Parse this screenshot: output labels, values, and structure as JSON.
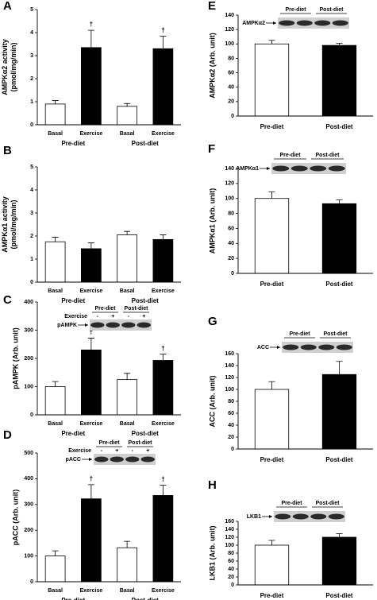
{
  "chart_data": [
    {
      "type": "bar",
      "panel": "A",
      "ylabel": [
        "AMPKα2 activity",
        "(pmol/mg/min)"
      ],
      "categories": [
        "Basal",
        "Exercise",
        "Basal",
        "Exercise"
      ],
      "groups": [
        "Pre-diet",
        "Post-diet"
      ],
      "values": [
        0.9,
        3.35,
        0.8,
        3.3
      ],
      "errors": [
        0.15,
        0.75,
        0.12,
        0.55
      ],
      "colors": [
        "#ffffff",
        "#000000",
        "#ffffff",
        "#000000"
      ],
      "daggers": [
        null,
        "†",
        null,
        "†"
      ],
      "ylim": [
        0,
        5
      ],
      "yticks": [
        0,
        1,
        2,
        3,
        4,
        5
      ]
    },
    {
      "type": "bar",
      "panel": "B",
      "ylabel": [
        "AMPKα1 activity",
        "(pmol/mg/min)"
      ],
      "categories": [
        "Basal",
        "Exercise",
        "Basal",
        "Exercise"
      ],
      "groups": [
        "Pre-diet",
        "Post-diet"
      ],
      "values": [
        1.75,
        1.45,
        2.05,
        1.85
      ],
      "errors": [
        0.2,
        0.25,
        0.15,
        0.2
      ],
      "colors": [
        "#ffffff",
        "#000000",
        "#ffffff",
        "#000000"
      ],
      "ylim": [
        0,
        5
      ],
      "yticks": [
        0,
        1,
        2,
        3,
        4,
        5
      ]
    },
    {
      "type": "bar",
      "panel": "C",
      "ylabel": [
        "pAMPK (Arb. unit)"
      ],
      "categories": [
        "Basal",
        "Exercise",
        "Basal",
        "Exercise"
      ],
      "groups": [
        "Pre-diet",
        "Post-diet"
      ],
      "values": [
        100,
        230,
        125,
        193
      ],
      "errors": [
        18,
        42,
        22,
        22
      ],
      "colors": [
        "#ffffff",
        "#000000",
        "#ffffff",
        "#000000"
      ],
      "daggers": [
        null,
        "†",
        null,
        "†"
      ],
      "ylim": [
        0,
        400
      ],
      "yticks": [
        0,
        100,
        200,
        300,
        400
      ],
      "blot": {
        "label": "pAMPK",
        "groups": [
          "Pre-diet",
          "Post-diet"
        ],
        "row_label": "Exercise",
        "lanes": [
          "-",
          "+",
          "-",
          "+"
        ]
      }
    },
    {
      "type": "bar",
      "panel": "D",
      "ylabel": [
        "pACC (Arb. unit)"
      ],
      "categories": [
        "Basal",
        "Exercise",
        "Basal",
        "Exercise"
      ],
      "groups": [
        "Pre-diet",
        "Post-diet"
      ],
      "values": [
        100,
        322,
        132,
        335
      ],
      "errors": [
        20,
        55,
        25,
        40
      ],
      "colors": [
        "#ffffff",
        "#000000",
        "#ffffff",
        "#000000"
      ],
      "daggers": [
        null,
        "†",
        null,
        "†"
      ],
      "ylim": [
        0,
        500
      ],
      "yticks": [
        0,
        100,
        200,
        300,
        400,
        500
      ],
      "blot": {
        "label": "pACC",
        "groups": [
          "Pre-diet",
          "Post-diet"
        ],
        "row_label": "Exercise",
        "lanes": [
          "-",
          "+",
          "-",
          "+"
        ]
      }
    },
    {
      "type": "bar",
      "panel": "E",
      "ylabel": [
        "AMPKα2 (Arb. unit)"
      ],
      "categories": [
        "Pre-diet",
        "Post-diet"
      ],
      "values": [
        100,
        98
      ],
      "errors": [
        5,
        3
      ],
      "colors": [
        "#ffffff",
        "#000000"
      ],
      "ylim": [
        0,
        140
      ],
      "yticks": [
        0,
        20,
        40,
        60,
        80,
        100,
        120,
        140
      ],
      "blot": {
        "label": "AMPKα2",
        "groups": [
          "Pre-diet",
          "Post-diet"
        ]
      }
    },
    {
      "type": "bar",
      "panel": "F",
      "ylabel": [
        "AMPKα1 (Arb. unit)"
      ],
      "categories": [
        "Pre-diet",
        "Post-diet"
      ],
      "values": [
        100,
        93
      ],
      "errors": [
        9,
        5
      ],
      "colors": [
        "#ffffff",
        "#000000"
      ],
      "ylim": [
        0,
        140
      ],
      "yticks": [
        0,
        20,
        40,
        60,
        80,
        100,
        120,
        140
      ],
      "blot": {
        "label": "AMPKα1",
        "groups": [
          "Pre-diet",
          "Post-diet"
        ]
      }
    },
    {
      "type": "bar",
      "panel": "G",
      "ylabel": [
        "ACC (Arb. unit)"
      ],
      "categories": [
        "Pre-diet",
        "Post-diet"
      ],
      "values": [
        100,
        125
      ],
      "errors": [
        13,
        22
      ],
      "colors": [
        "#ffffff",
        "#000000"
      ],
      "ylim": [
        0,
        160
      ],
      "yticks": [
        0,
        20,
        40,
        60,
        80,
        100,
        120,
        140,
        160
      ],
      "blot": {
        "label": "ACC",
        "groups": [
          "Pre-diet",
          "Post-diet"
        ]
      }
    },
    {
      "type": "bar",
      "panel": "H",
      "ylabel": [
        "LKB1 (Arb. unit)"
      ],
      "categories": [
        "Pre-diet",
        "Post-diet"
      ],
      "values": [
        100,
        120
      ],
      "errors": [
        12,
        9
      ],
      "colors": [
        "#ffffff",
        "#000000"
      ],
      "ylim": [
        0,
        160
      ],
      "yticks": [
        0,
        20,
        40,
        60,
        80,
        100,
        120,
        140,
        160
      ],
      "blot": {
        "label": "LKB1",
        "groups": [
          "Pre-diet",
          "Post-diet"
        ]
      }
    }
  ]
}
